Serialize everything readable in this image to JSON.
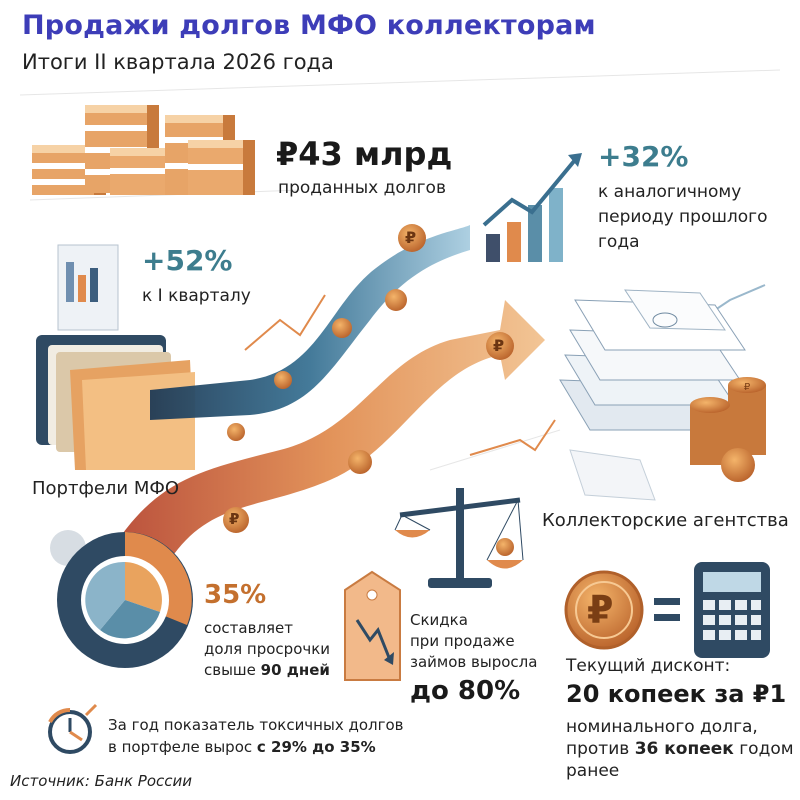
{
  "header": {
    "title": "Продажи долгов МФО коллекторам",
    "subtitle": "Итоги II квартала 2026 года"
  },
  "stats": {
    "sold": {
      "value": "₽43 млрд",
      "caption": "проданных долгов"
    },
    "yoy": {
      "value": "+32%",
      "caption_lines": [
        "к аналогичному",
        "периоду прошлого",
        "года"
      ]
    },
    "qoq": {
      "value": "+52%",
      "caption": "к I кварталу"
    },
    "overdue": {
      "value": "35%",
      "line1": "составляет",
      "line2": "доля просрочки",
      "line3_prefix": "свыше ",
      "line3_bold": "90 дней"
    },
    "discount_growth": {
      "line1": "Скидка",
      "line2": "при продаже",
      "line3": "займов выросла",
      "value": "до 80%"
    },
    "current_discount": {
      "label": "Текущий дисконт:",
      "value": "20 копеек за ₽1",
      "line1": "номинального долга,",
      "line2_prefix": "против ",
      "line2_bold": "36 копеек",
      "line2_suffix": " годом",
      "line3": "ранее"
    },
    "toxic": {
      "line1": "За год показатель токсичных долгов",
      "line2_prefix": "в портфеле вырос ",
      "line2_bold": "с 29% до 35%"
    }
  },
  "labels": {
    "portfolios": "Портфели МФО",
    "agencies": "Коллекторские агентства",
    "ruble_symbol": "₽"
  },
  "footer": {
    "source": "Источник: Банк России"
  },
  "colors": {
    "title": "#3d3db8",
    "teal_stream": "#3d6f86",
    "orange_stream": "#d98a4a",
    "coin": "#d9893a"
  }
}
